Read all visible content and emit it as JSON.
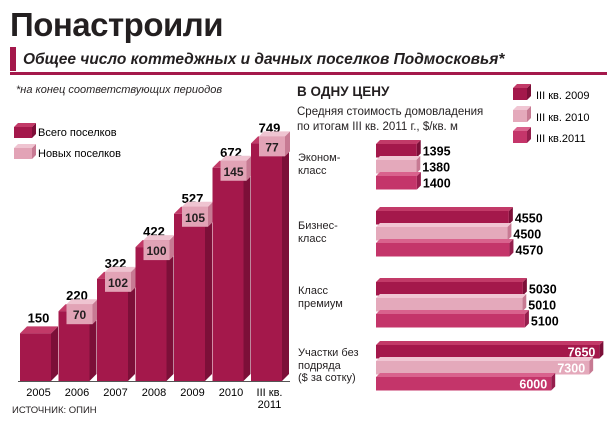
{
  "header": {
    "title": "Понастроили",
    "subtitle": "Общее число коттеджных и дачных поселков Подмосковья*",
    "footnote": "*на конец соответствующих периодов",
    "source": "ИСТОЧНИК: ОПИН"
  },
  "colors": {
    "total_front": "#a4184b",
    "total_side": "#7c0f38",
    "total_top": "#c23a68",
    "new_front": "#e2a3b6",
    "new_side": "#c77a93",
    "new_top": "#efc4d1",
    "y2009": "#a4184b",
    "y2010": "#e4a9bb",
    "y2011": "#c4356a"
  },
  "chart_data": [
    {
      "type": "bar",
      "title": "Понастроили",
      "subtitle": "Общее число коттеджных и дачных поселков Подмосковья*",
      "categories": [
        "2005",
        "2006",
        "2007",
        "2008",
        "2009",
        "2010",
        "III кв. 2011"
      ],
      "category_lines": [
        [
          "2005"
        ],
        [
          "2006"
        ],
        [
          "2007"
        ],
        [
          "2008"
        ],
        [
          "2009"
        ],
        [
          "2010"
        ],
        [
          "III кв.",
          "2011"
        ]
      ],
      "series": [
        {
          "name": "Всего поселков",
          "values": [
            150,
            220,
            322,
            422,
            527,
            672,
            749
          ]
        },
        {
          "name": "Новых поселков",
          "values": [
            null,
            70,
            102,
            100,
            105,
            145,
            77
          ]
        }
      ],
      "value_labels": {
        "total": [
          "150",
          "220",
          "322",
          "422",
          "527",
          "672",
          "749"
        ],
        "new": [
          "",
          "70",
          "102",
          "100",
          "105",
          "145",
          "77"
        ]
      },
      "ylim": [
        0,
        800
      ],
      "legend": "top-left"
    },
    {
      "type": "bar",
      "orientation": "horizontal",
      "title": "В ОДНУ ЦЕНУ",
      "subtitle_lines": [
        "Средняя стоимость домовладения",
        "по итогам III кв. 2011 г., $/кв. м"
      ],
      "categories": [
        "Эконом-класс",
        "Бизнес-класс",
        "Класс премиум",
        "Участки без подряда ($ за сотку)"
      ],
      "category_lines": [
        [
          "Эконом-",
          "класс"
        ],
        [
          "Бизнес-",
          "класс"
        ],
        [
          "Класс",
          "премиум"
        ],
        [
          "Участки без",
          "подряда",
          "($ за сотку)"
        ]
      ],
      "series": [
        {
          "name": "III кв. 2009",
          "values": [
            1395,
            4550,
            5030,
            7650
          ]
        },
        {
          "name": "III кв. 2010",
          "values": [
            1380,
            4500,
            5010,
            7300
          ]
        },
        {
          "name": "III кв.2011",
          "values": [
            1400,
            4570,
            5100,
            6000
          ]
        }
      ],
      "value_labels": [
        [
          "1395",
          "1380",
          "1400"
        ],
        [
          "4550",
          "4500",
          "4570"
        ],
        [
          "5030",
          "5010",
          "5100"
        ],
        [
          "7650",
          "7300",
          "6000"
        ]
      ],
      "legend": "top-right"
    }
  ]
}
